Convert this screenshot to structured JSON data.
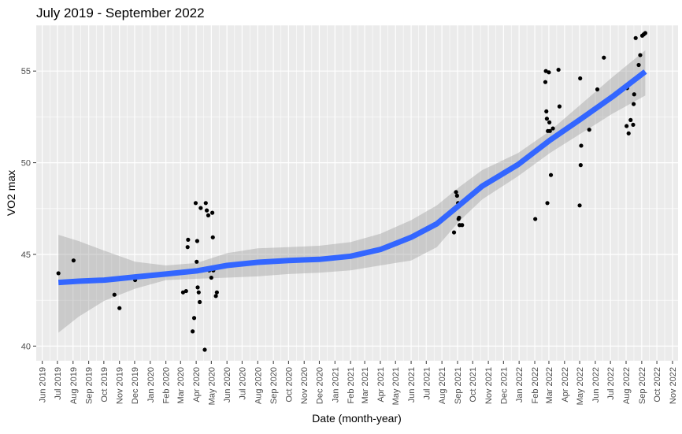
{
  "chart_data": {
    "type": "scatter",
    "title": "July 2019 - September 2022",
    "xlabel": "Date (month-year)",
    "ylabel": "VO2 max",
    "x_tick_labels": [
      "Jun 2019",
      "Jul 2019",
      "Aug 2019",
      "Sep 2019",
      "Oct 2019",
      "Nov 2019",
      "Dec 2019",
      "Jan 2020",
      "Feb 2020",
      "Mar 2020",
      "Apr 2020",
      "May 2020",
      "Jun 2020",
      "Jul 2020",
      "Aug 2020",
      "Sep 2020",
      "Oct 2020",
      "Nov 2020",
      "Dec 2020",
      "Jan 2021",
      "Feb 2021",
      "Mar 2021",
      "Apr 2021",
      "May 2021",
      "Jun 2021",
      "Jul 2021",
      "Aug 2021",
      "Sep 2021",
      "Oct 2021",
      "Nov 2021",
      "Dec 2021",
      "Jan 2022",
      "Feb 2022",
      "Mar 2022",
      "Apr 2022",
      "May 2022",
      "Jun 2022",
      "Jul 2022",
      "Aug 2022",
      "Sep 2022",
      "Oct 2022",
      "Nov 2022"
    ],
    "xlim": [
      "2019-05-20",
      "2022-11-12"
    ],
    "y_ticks": [
      40,
      45,
      50,
      55
    ],
    "ylim": [
      39.2,
      57.5
    ],
    "grid": true,
    "points": [
      {
        "x": "2019-07-03",
        "y": 43.97
      },
      {
        "x": "2019-08-02",
        "y": 44.67
      },
      {
        "x": "2019-10-22",
        "y": 42.8
      },
      {
        "x": "2019-11-01",
        "y": 42.07
      },
      {
        "x": "2019-12-02",
        "y": 43.6
      },
      {
        "x": "2020-03-06",
        "y": 42.93
      },
      {
        "x": "2020-03-12",
        "y": 43.0
      },
      {
        "x": "2020-03-15",
        "y": 45.4
      },
      {
        "x": "2020-03-16",
        "y": 45.8
      },
      {
        "x": "2020-03-25",
        "y": 40.8
      },
      {
        "x": "2020-03-28",
        "y": 41.53
      },
      {
        "x": "2020-03-31",
        "y": 47.8
      },
      {
        "x": "2020-04-02",
        "y": 44.6
      },
      {
        "x": "2020-04-03",
        "y": 45.73
      },
      {
        "x": "2020-04-04",
        "y": 43.2
      },
      {
        "x": "2020-04-06",
        "y": 42.93
      },
      {
        "x": "2020-04-08",
        "y": 42.4
      },
      {
        "x": "2020-04-10",
        "y": 47.53
      },
      {
        "x": "2020-04-18",
        "y": 39.8
      },
      {
        "x": "2020-04-20",
        "y": 47.8
      },
      {
        "x": "2020-04-22",
        "y": 47.4
      },
      {
        "x": "2020-04-25",
        "y": 47.13
      },
      {
        "x": "2020-04-27",
        "y": 44.13
      },
      {
        "x": "2020-05-01",
        "y": 43.73
      },
      {
        "x": "2020-05-03",
        "y": 47.27
      },
      {
        "x": "2020-05-04",
        "y": 45.93
      },
      {
        "x": "2020-05-05",
        "y": 44.13
      },
      {
        "x": "2020-05-10",
        "y": 42.73
      },
      {
        "x": "2020-05-12",
        "y": 42.93
      },
      {
        "x": "2021-08-25",
        "y": 46.2
      },
      {
        "x": "2021-08-29",
        "y": 48.4
      },
      {
        "x": "2021-08-31",
        "y": 48.2
      },
      {
        "x": "2021-09-02",
        "y": 47.8
      },
      {
        "x": "2021-09-03",
        "y": 46.93
      },
      {
        "x": "2021-09-04",
        "y": 47.0
      },
      {
        "x": "2021-09-05",
        "y": 46.6
      },
      {
        "x": "2021-09-10",
        "y": 46.6
      },
      {
        "x": "2022-02-02",
        "y": 46.93
      },
      {
        "x": "2022-02-22",
        "y": 54.4
      },
      {
        "x": "2022-02-23",
        "y": 55.0
      },
      {
        "x": "2022-02-24",
        "y": 52.8
      },
      {
        "x": "2022-02-25",
        "y": 52.4
      },
      {
        "x": "2022-02-26",
        "y": 47.8
      },
      {
        "x": "2022-02-27",
        "y": 51.73
      },
      {
        "x": "2022-03-01",
        "y": 54.93
      },
      {
        "x": "2022-03-02",
        "y": 52.2
      },
      {
        "x": "2022-03-03",
        "y": 51.73
      },
      {
        "x": "2022-03-05",
        "y": 49.33
      },
      {
        "x": "2022-03-09",
        "y": 51.87
      },
      {
        "x": "2022-03-20",
        "y": 55.07
      },
      {
        "x": "2022-03-22",
        "y": 53.07
      },
      {
        "x": "2022-05-01",
        "y": 47.67
      },
      {
        "x": "2022-05-02",
        "y": 54.6
      },
      {
        "x": "2022-05-03",
        "y": 49.87
      },
      {
        "x": "2022-05-04",
        "y": 50.93
      },
      {
        "x": "2022-05-20",
        "y": 51.8
      },
      {
        "x": "2022-06-05",
        "y": 54.0
      },
      {
        "x": "2022-06-18",
        "y": 55.73
      },
      {
        "x": "2022-08-02",
        "y": 52.0
      },
      {
        "x": "2022-08-03",
        "y": 54.07
      },
      {
        "x": "2022-08-06",
        "y": 51.6
      },
      {
        "x": "2022-08-10",
        "y": 52.33
      },
      {
        "x": "2022-08-15",
        "y": 52.07
      },
      {
        "x": "2022-08-16",
        "y": 53.2
      },
      {
        "x": "2022-08-17",
        "y": 53.73
      },
      {
        "x": "2022-08-20",
        "y": 56.8
      },
      {
        "x": "2022-08-26",
        "y": 55.33
      },
      {
        "x": "2022-08-29",
        "y": 55.87
      },
      {
        "x": "2022-09-02",
        "y": 56.93
      },
      {
        "x": "2022-09-05",
        "y": 57.0
      },
      {
        "x": "2022-09-08",
        "y": 57.07
      }
    ],
    "smooth": {
      "x": [
        "2019-07-03",
        "2019-08-12",
        "2019-10-02",
        "2019-12-02",
        "2020-02-01",
        "2020-04-02",
        "2020-06-01",
        "2020-08-01",
        "2020-10-01",
        "2020-12-01",
        "2021-02-01",
        "2021-04-01",
        "2021-06-01",
        "2021-07-22",
        "2021-09-04",
        "2021-10-20",
        "2021-12-30",
        "2022-03-03",
        "2022-05-04",
        "2022-07-05",
        "2022-09-08"
      ],
      "y": [
        43.47,
        43.54,
        43.6,
        43.77,
        43.93,
        44.1,
        44.4,
        44.57,
        44.67,
        44.73,
        44.9,
        45.27,
        45.93,
        46.67,
        47.67,
        48.73,
        49.9,
        51.23,
        52.4,
        53.6,
        54.97
      ],
      "lower": [
        40.73,
        41.6,
        42.47,
        43.13,
        43.6,
        43.67,
        43.73,
        43.8,
        43.93,
        44.0,
        44.13,
        44.4,
        44.67,
        45.4,
        46.8,
        48.0,
        49.27,
        50.53,
        51.6,
        52.67,
        53.67
      ],
      "upper": [
        46.07,
        45.73,
        45.2,
        44.6,
        44.4,
        44.53,
        45.07,
        45.33,
        45.4,
        45.47,
        45.67,
        46.13,
        46.87,
        47.67,
        48.67,
        49.6,
        50.53,
        51.73,
        53.2,
        54.67,
        56.13
      ]
    },
    "colors": {
      "panel_background": "#ebebeb",
      "grid": "#ffffff",
      "points": "#000000",
      "smooth_line": "#3366ff",
      "confidence_band": "#999999"
    }
  }
}
